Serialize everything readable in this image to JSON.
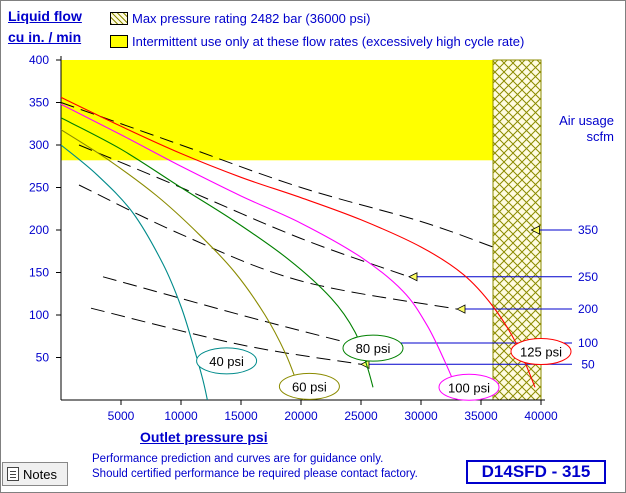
{
  "colors": {
    "axis_text": "#0000cc",
    "intermittent_zone": "#ffff00",
    "max_pressure_hatch": "#8b8b00",
    "air_line": "#0000cc"
  },
  "legend": {
    "max_pressure": "Max pressure rating 2482 bar (36000 psi)",
    "intermittent": "Intermittent use only at these flow rates (excessively high cycle rate)"
  },
  "y_axis": {
    "title_line1": "Liquid flow",
    "title_line2": "cu in. / min"
  },
  "x_axis": {
    "title": "Outlet pressure   psi"
  },
  "air_usage": {
    "title_line1": "Air usage",
    "title_line2": "scfm"
  },
  "disclaimer": {
    "line1": "Performance prediction and curves are for guidance only.",
    "line2": "Should certified performance be required please contact factory."
  },
  "model": "D14SFD - 315",
  "notes_button": "Notes",
  "chart_data": {
    "type": "line",
    "title": "",
    "xlabel": "Outlet pressure   psi",
    "ylabel": "Liquid flow cu in. / min",
    "xlim": [
      0,
      40000
    ],
    "ylim": [
      0,
      400
    ],
    "x_ticks": [
      5000,
      10000,
      15000,
      20000,
      25000,
      30000,
      35000,
      40000
    ],
    "y_ticks": [
      50,
      100,
      150,
      200,
      250,
      300,
      350,
      400
    ],
    "x_tick_labels": [
      "5000",
      "10000",
      "15000",
      "20000",
      "25000",
      "30000",
      "35000",
      "40000"
    ],
    "y_tick_labels": [
      "50",
      "100",
      "150",
      "200",
      "250",
      "300",
      "350",
      "400"
    ],
    "grid": false,
    "zones": [
      {
        "name": "intermittent use",
        "x_range": [
          0,
          40000
        ],
        "y_range": [
          282,
          400
        ],
        "fill": "yellow"
      },
      {
        "name": "max pressure rating",
        "x_range": [
          36000,
          40000
        ],
        "y_range": [
          0,
          400
        ],
        "fill": "crosshatch"
      }
    ],
    "series": [
      {
        "name": "40 psi",
        "color": "#008b8b",
        "x": [
          0,
          3000,
          6000,
          8500,
          10000,
          11000,
          11800,
          12200
        ],
        "y": [
          300,
          265,
          220,
          160,
          110,
          65,
          25,
          0
        ],
        "label": "40 psi",
        "label_at": [
          13800,
          46
        ],
        "label_border": "#008b8b"
      },
      {
        "name": "60 psi",
        "color": "#8b8b00",
        "x": [
          0,
          4000,
          8000,
          11500,
          14500,
          17000,
          18700,
          19800,
          20200
        ],
        "y": [
          318,
          282,
          240,
          195,
          150,
          100,
          55,
          15,
          0
        ],
        "label": "60 psi",
        "label_at": [
          20700,
          16
        ],
        "label_border": "#8b8b00"
      },
      {
        "name": "80 psi",
        "color": "#008000",
        "x": [
          0,
          5000,
          10000,
          14500,
          19000,
          22500,
          24500,
          25500,
          26000
        ],
        "y": [
          332,
          295,
          250,
          210,
          165,
          120,
          80,
          40,
          15
        ],
        "label": "80 psi",
        "label_at": [
          26000,
          61
        ],
        "label_border": "#008000"
      },
      {
        "name": "100 psi",
        "color": "#ff00ff",
        "x": [
          0,
          5000,
          10000,
          15000,
          20000,
          25000,
          28500,
          30500,
          32000,
          33000
        ],
        "y": [
          348,
          312,
          275,
          240,
          208,
          168,
          128,
          88,
          45,
          12
        ],
        "label": "100 psi",
        "label_at": [
          34000,
          15
        ],
        "label_border": "#ff00ff"
      },
      {
        "name": "125 psi",
        "color": "#ff0000",
        "x": [
          0,
          5000,
          10000,
          15000,
          20000,
          25000,
          30000,
          33500,
          36000,
          38000,
          39500
        ],
        "y": [
          356,
          322,
          290,
          262,
          238,
          212,
          180,
          148,
          110,
          65,
          15
        ],
        "label": "125 psi",
        "label_at": [
          40000,
          57
        ],
        "label_border": "#ff0000"
      }
    ],
    "air_usage_lines": [
      {
        "value": 350,
        "x": [
          0,
          10000,
          20000,
          30000,
          36000
        ],
        "y": [
          350,
          300,
          250,
          210,
          180
        ],
        "arrow_at": [
          39200,
          200
        ],
        "label": "350"
      },
      {
        "value": 250,
        "x": [
          1500,
          10000,
          20000,
          29000
        ],
        "y": [
          300,
          250,
          190,
          145
        ],
        "arrow_at": [
          29000,
          145
        ],
        "label": "250"
      },
      {
        "value": 200,
        "x": [
          1500,
          10000,
          20000,
          33000
        ],
        "y": [
          253,
          195,
          140,
          107
        ],
        "arrow_at": [
          33000,
          107
        ],
        "label": "200"
      },
      {
        "value": 100,
        "x": [
          3500,
          15000,
          24000
        ],
        "y": [
          145,
          100,
          67
        ],
        "arrow_at": [
          24000,
          67
        ],
        "label": "100"
      },
      {
        "value": 50,
        "x": [
          2500,
          15000,
          25000
        ],
        "y": [
          108,
          65,
          42
        ],
        "arrow_at": [
          25000,
          42
        ],
        "label": "50"
      }
    ]
  }
}
